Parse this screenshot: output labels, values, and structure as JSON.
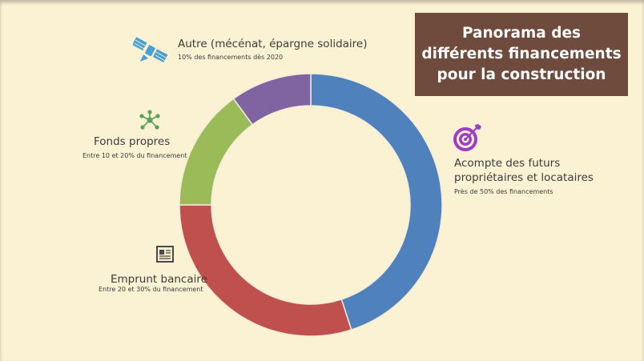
{
  "title": "Panorama des différents financements pour la construction",
  "colors": {
    "background": "#fbf1d3",
    "title_bg": "#6e4b3c",
    "acompte": "#4f81bd",
    "emprunt": "#c0504d",
    "fonds": "#9bbb59",
    "autre": "#8064a2"
  },
  "chart_data": {
    "type": "pie",
    "donut": true,
    "slices": [
      {
        "label": "Acompte des futurs propriétaires et locataires",
        "line1": "Acompte des futurs",
        "line2": "propriétaires et locataires",
        "note": "Près de 50% des financements",
        "value": 45,
        "color": "#4f81bd",
        "icon": "target-icon"
      },
      {
        "label": "Emprunt bancaire",
        "note": "Entre 20 et 30% du financement",
        "value": 30,
        "color": "#c0504d",
        "icon": "newspaper-icon"
      },
      {
        "label": "Fonds propres",
        "note": "Entre 10 et 20% du financement",
        "value": 15,
        "color": "#9bbb59",
        "icon": "network-icon"
      },
      {
        "label": "Autre (mécénat, épargne solidaire)",
        "note": "10% des financements dès 2020",
        "value": 10,
        "color": "#8064a2",
        "icon": "satellite-icon"
      }
    ]
  }
}
